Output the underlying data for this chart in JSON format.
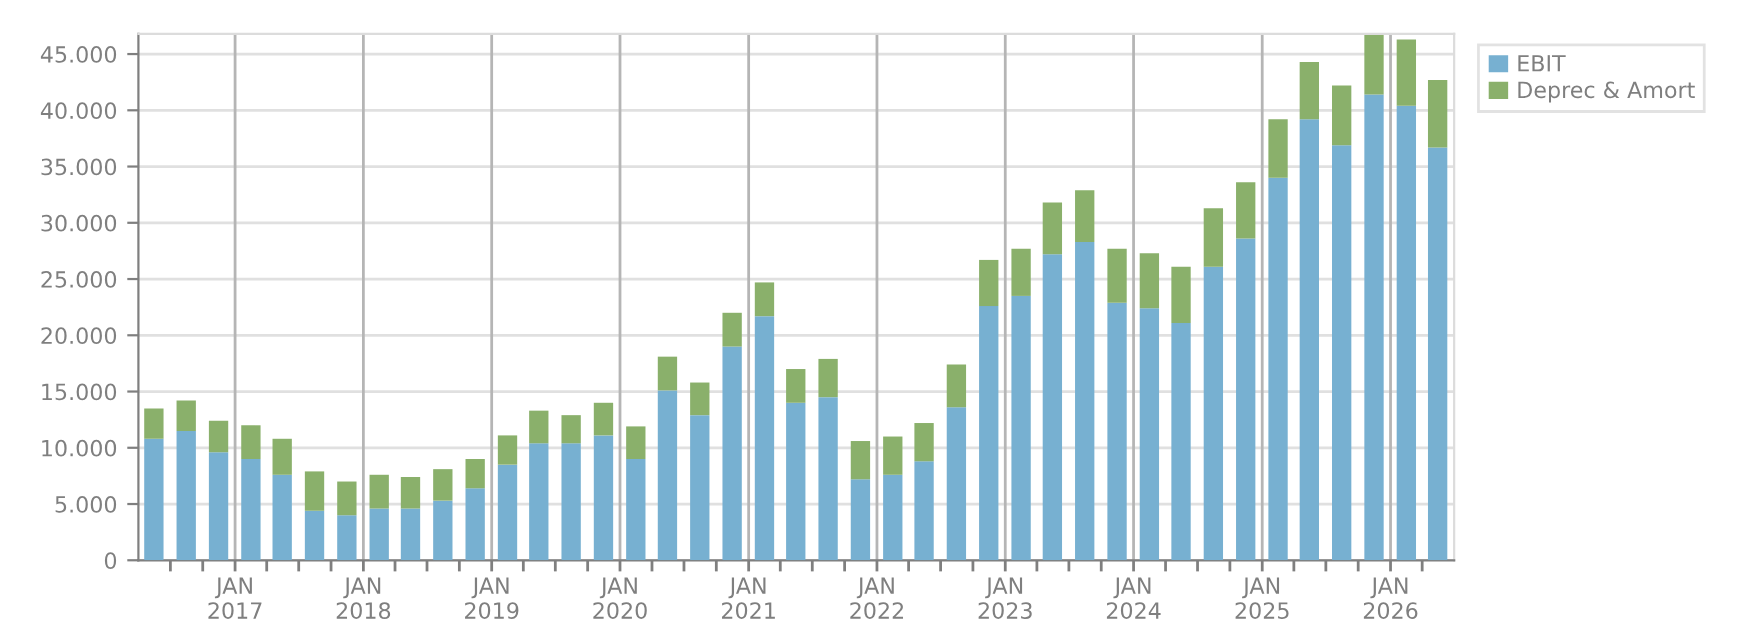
{
  "chart_data": {
    "type": "bar",
    "stacked": true,
    "x": [
      "2016-05-15",
      "2016-08-15",
      "2016-11-15",
      "2017-02-15",
      "2017-05-15",
      "2017-08-15",
      "2017-11-15",
      "2018-02-15",
      "2018-05-15",
      "2018-08-15",
      "2018-11-15",
      "2019-02-15",
      "2019-05-15",
      "2019-08-15",
      "2019-11-15",
      "2020-02-15",
      "2020-05-15",
      "2020-08-15",
      "2020-11-15",
      "2021-02-15",
      "2021-05-15",
      "2021-08-15",
      "2021-11-15",
      "2022-02-15",
      "2022-05-15",
      "2022-08-15",
      "2022-11-15",
      "2023-02-15",
      "2023-05-15",
      "2023-08-15",
      "2023-11-15",
      "2024-02-15",
      "2024-05-15",
      "2024-08-15",
      "2024-11-15",
      "2025-02-15",
      "2025-05-15",
      "2025-08-15",
      "2025-11-15",
      "2026-02-15",
      "2026-05-15"
    ],
    "series": [
      {
        "name": "EBIT",
        "color": "#77b0d1",
        "values": [
          10800,
          11500,
          9600,
          9000,
          7600,
          4400,
          4000,
          4600,
          4600,
          5300,
          6400,
          8500,
          10400,
          10400,
          11100,
          9000,
          15100,
          12900,
          19000,
          21700,
          14000,
          14500,
          7200,
          7600,
          8800,
          13600,
          22600,
          23500,
          27200,
          28300,
          22900,
          22400,
          21100,
          26100,
          28600,
          34000,
          39200,
          36900,
          41400,
          40400,
          36700
        ]
      },
      {
        "name": "Deprec & Amort",
        "color": "#8ab06b",
        "values": [
          2700,
          2700,
          2800,
          3000,
          3200,
          3500,
          3000,
          3000,
          2800,
          2800,
          2600,
          2600,
          2900,
          2500,
          2900,
          2900,
          3000,
          2900,
          3000,
          3000,
          3000,
          3400,
          3400,
          3400,
          3400,
          3800,
          4100,
          4200,
          4600,
          4600,
          4800,
          4900,
          5000,
          5200,
          5000,
          5200,
          5100,
          5300,
          5300,
          5900,
          6000
        ]
      }
    ],
    "xlim": [
      "2016-04-01",
      "2026-07-01"
    ],
    "xticks": [
      {
        "value": "2016-07-01",
        "label": null
      },
      {
        "value": "2016-10-01",
        "label": null
      },
      {
        "value": "2017-01-01",
        "label": "JAN\n2017"
      },
      {
        "value": "2017-04-01",
        "label": null
      },
      {
        "value": "2017-07-01",
        "label": null
      },
      {
        "value": "2017-10-01",
        "label": null
      },
      {
        "value": "2018-01-01",
        "label": "JAN\n2018"
      },
      {
        "value": "2018-04-01",
        "label": null
      },
      {
        "value": "2018-07-01",
        "label": null
      },
      {
        "value": "2018-10-01",
        "label": null
      },
      {
        "value": "2019-01-01",
        "label": "JAN\n2019"
      },
      {
        "value": "2019-04-01",
        "label": null
      },
      {
        "value": "2019-07-01",
        "label": null
      },
      {
        "value": "2019-10-01",
        "label": null
      },
      {
        "value": "2020-01-01",
        "label": "JAN\n2020"
      },
      {
        "value": "2020-04-01",
        "label": null
      },
      {
        "value": "2020-07-01",
        "label": null
      },
      {
        "value": "2020-10-01",
        "label": null
      },
      {
        "value": "2021-01-01",
        "label": "JAN\n2021"
      },
      {
        "value": "2021-04-01",
        "label": null
      },
      {
        "value": "2021-07-01",
        "label": null
      },
      {
        "value": "2021-10-01",
        "label": null
      },
      {
        "value": "2022-01-01",
        "label": "JAN\n2022"
      },
      {
        "value": "2022-04-01",
        "label": null
      },
      {
        "value": "2022-07-01",
        "label": null
      },
      {
        "value": "2022-10-01",
        "label": null
      },
      {
        "value": "2023-01-01",
        "label": "JAN\n2023"
      },
      {
        "value": "2023-04-01",
        "label": null
      },
      {
        "value": "2023-07-01",
        "label": null
      },
      {
        "value": "2023-10-01",
        "label": null
      },
      {
        "value": "2024-01-01",
        "label": "JAN\n2024"
      },
      {
        "value": "2024-04-01",
        "label": null
      },
      {
        "value": "2024-07-01",
        "label": null
      },
      {
        "value": "2024-10-01",
        "label": null
      },
      {
        "value": "2025-01-01",
        "label": "JAN\n2025"
      },
      {
        "value": "2025-04-01",
        "label": null
      },
      {
        "value": "2025-07-01",
        "label": null
      },
      {
        "value": "2025-10-01",
        "label": null
      },
      {
        "value": "2026-01-01",
        "label": "JAN\n2026"
      },
      {
        "value": "2026-04-01",
        "label": null
      }
    ],
    "ylim": [
      0,
      46800
    ],
    "yticks": [
      0,
      {
        "value": 5000,
        "label": "5.000"
      },
      {
        "value": 10000,
        "label": "10.000"
      },
      {
        "value": 15000,
        "label": "15.000"
      },
      {
        "value": 20000,
        "label": "20.000"
      },
      {
        "value": 25000,
        "label": "25.000"
      },
      {
        "value": 30000,
        "label": "30.000"
      },
      {
        "value": 35000,
        "label": "35.000"
      },
      {
        "value": 40000,
        "label": "40.000"
      },
      {
        "value": 45000,
        "label": "45.000"
      }
    ],
    "grid": true,
    "legend": "top right"
  }
}
